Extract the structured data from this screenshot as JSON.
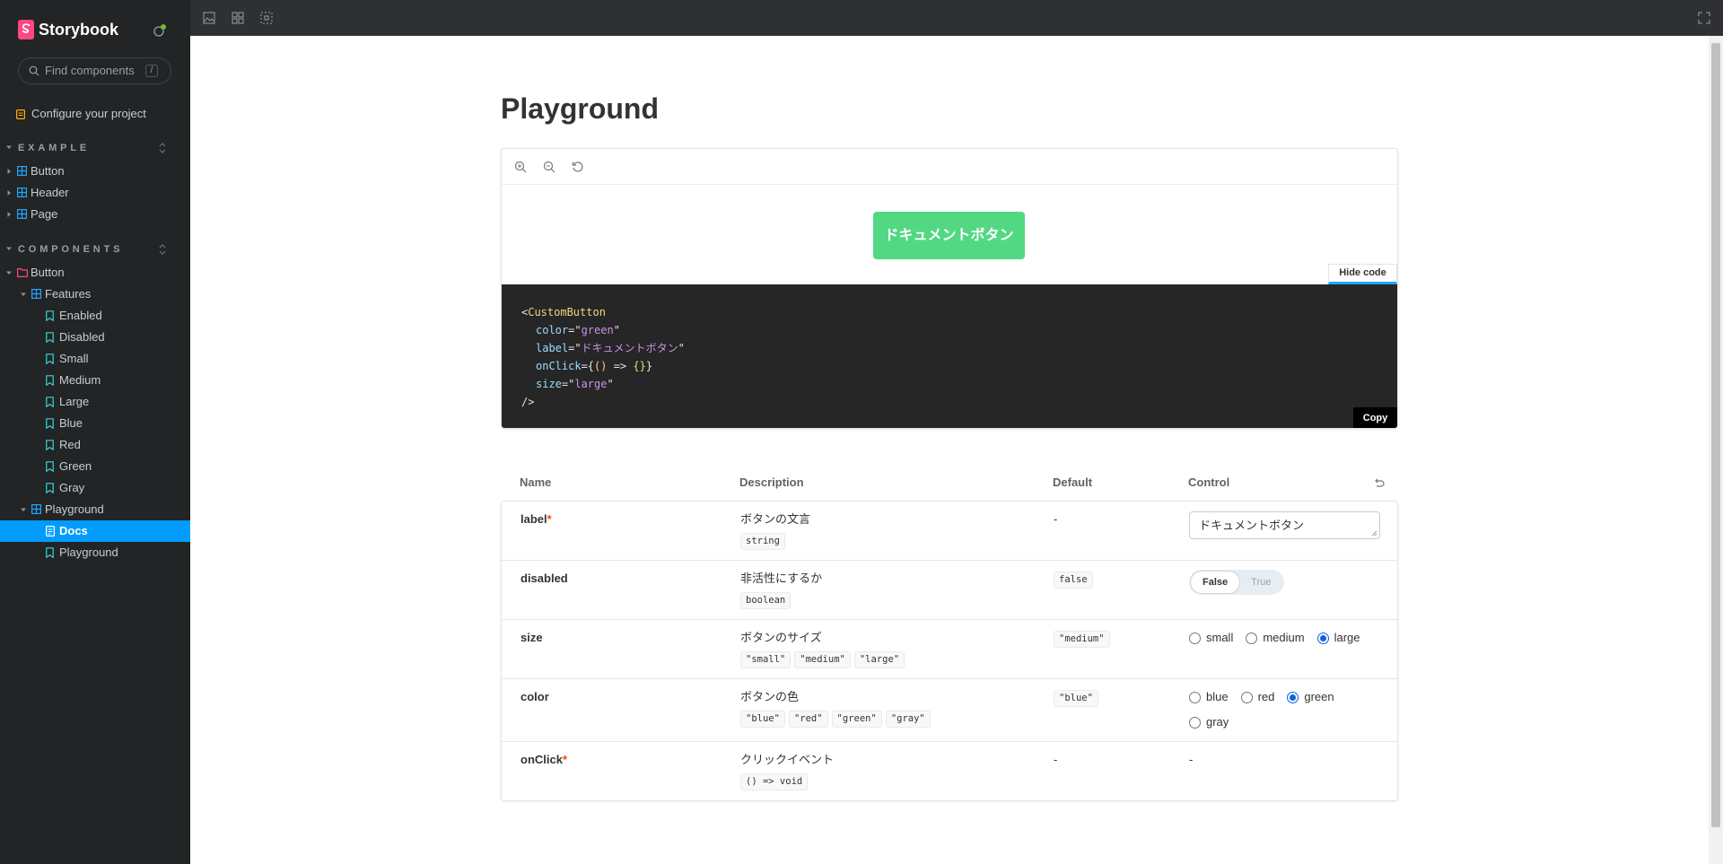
{
  "sidebar": {
    "brand": "Storybook",
    "search_placeholder": "Find components",
    "search_shortcut": "/",
    "configure_link": "Configure your project",
    "sections": [
      {
        "title": "EXAMPLE",
        "items": [
          {
            "label": "Button",
            "depth": 0,
            "kind": "component",
            "expanded": false
          },
          {
            "label": "Header",
            "depth": 0,
            "kind": "component",
            "expanded": false
          },
          {
            "label": "Page",
            "depth": 0,
            "kind": "component",
            "expanded": false
          }
        ]
      },
      {
        "title": "COMPONENTS",
        "items": [
          {
            "label": "Button",
            "depth": 0,
            "kind": "folder",
            "expanded": true
          },
          {
            "label": "Features",
            "depth": 1,
            "kind": "component",
            "expanded": true
          },
          {
            "label": "Enabled",
            "depth": 2,
            "kind": "story"
          },
          {
            "label": "Disabled",
            "depth": 2,
            "kind": "story"
          },
          {
            "label": "Small",
            "depth": 2,
            "kind": "story"
          },
          {
            "label": "Medium",
            "depth": 2,
            "kind": "story"
          },
          {
            "label": "Large",
            "depth": 2,
            "kind": "story"
          },
          {
            "label": "Blue",
            "depth": 2,
            "kind": "story"
          },
          {
            "label": "Red",
            "depth": 2,
            "kind": "story"
          },
          {
            "label": "Green",
            "depth": 2,
            "kind": "story"
          },
          {
            "label": "Gray",
            "depth": 2,
            "kind": "story"
          },
          {
            "label": "Playground",
            "depth": 1,
            "kind": "component",
            "expanded": true
          },
          {
            "label": "Docs",
            "depth": 2,
            "kind": "docs",
            "selected": true
          },
          {
            "label": "Playground",
            "depth": 2,
            "kind": "story"
          }
        ]
      }
    ]
  },
  "doc": {
    "title": "Playground",
    "preview": {
      "button_label": "ドキュメントボタン",
      "hide_code": "Hide code",
      "copy": "Copy",
      "code": [
        [
          {
            "text": "<",
            "kind": "punct"
          },
          {
            "text": "CustomButton",
            "kind": "tag"
          }
        ],
        [
          {
            "text": "color",
            "kind": "attr"
          },
          {
            "text": "=\"",
            "kind": "punct"
          },
          {
            "text": "green",
            "kind": "string"
          },
          {
            "text": "\"",
            "kind": "punct"
          }
        ],
        [
          {
            "text": "label",
            "kind": "attr"
          },
          {
            "text": "=\"",
            "kind": "punct"
          },
          {
            "text": "ドキュメントボタン",
            "kind": "string"
          },
          {
            "text": "\"",
            "kind": "punct"
          }
        ],
        [
          {
            "text": "onClick",
            "kind": "attr"
          },
          {
            "text": "={",
            "kind": "punct"
          },
          {
            "text": "()",
            "kind": "fn"
          },
          {
            "text": " => ",
            "kind": "punct"
          },
          {
            "text": "{}",
            "kind": "fn"
          },
          {
            "text": "}",
            "kind": "punct"
          }
        ],
        [
          {
            "text": "size",
            "kind": "attr"
          },
          {
            "text": "=\"",
            "kind": "punct"
          },
          {
            "text": "large",
            "kind": "string"
          },
          {
            "text": "\"",
            "kind": "punct"
          }
        ],
        [
          {
            "text": "/>",
            "kind": "punct"
          }
        ]
      ]
    },
    "args_table": {
      "columns": [
        "Name",
        "Description",
        "Default",
        "Control"
      ],
      "required_mark": "*",
      "rows": [
        {
          "name": "label",
          "required": true,
          "description": "ボタンの文言",
          "types": [
            "string"
          ],
          "default": "-",
          "default_format": "plain",
          "control": {
            "type": "text",
            "value": "ドキュメントボタン"
          }
        },
        {
          "name": "disabled",
          "required": false,
          "description": "非活性にするか",
          "types": [
            "boolean"
          ],
          "default": "false",
          "default_format": "code",
          "control": {
            "type": "toggle",
            "options": [
              {
                "label": "False",
                "checked": true
              },
              {
                "label": "True",
                "checked": false
              }
            ]
          }
        },
        {
          "name": "size",
          "required": false,
          "description": "ボタンのサイズ",
          "types": [
            "\"small\"",
            "\"medium\"",
            "\"large\""
          ],
          "default": "\"medium\"",
          "default_format": "code",
          "control": {
            "type": "radio",
            "options": [
              {
                "label": "small",
                "checked": false
              },
              {
                "label": "medium",
                "checked": false
              },
              {
                "label": "large",
                "checked": true
              }
            ]
          }
        },
        {
          "name": "color",
          "required": false,
          "description": "ボタンの色",
          "types": [
            "\"blue\"",
            "\"red\"",
            "\"green\"",
            "\"gray\""
          ],
          "default": "\"blue\"",
          "default_format": "code",
          "control": {
            "type": "radio",
            "options": [
              {
                "label": "blue",
                "checked": false
              },
              {
                "label": "red",
                "checked": false
              },
              {
                "label": "green",
                "checked": true
              },
              {
                "label": "gray",
                "checked": false
              }
            ]
          }
        },
        {
          "name": "onClick",
          "required": true,
          "description": "クリックイベント",
          "types": [
            "() => void"
          ],
          "default": "-",
          "default_format": "plain",
          "control": {
            "type": "none",
            "text": "-"
          }
        }
      ]
    }
  }
}
